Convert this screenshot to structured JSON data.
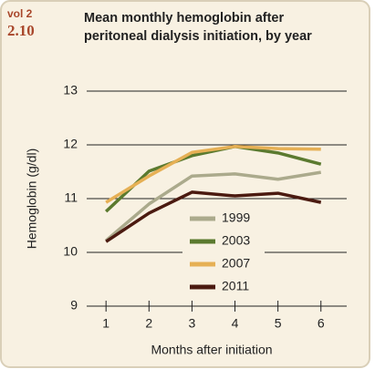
{
  "chart_data": {
    "type": "line",
    "volume": "vol 2",
    "figure": "2.10",
    "title": [
      "Mean monthly hemoglobin after",
      "peritoneal dialysis initiation, by year"
    ],
    "xlabel": "Months after initiation",
    "ylabel": "Hemoglobin (g/dl)",
    "x": [
      1,
      2,
      3,
      4,
      5,
      6
    ],
    "xlim": [
      0.55,
      6.6
    ],
    "xticks": [
      1,
      2,
      3,
      4,
      5,
      6
    ],
    "ylim": [
      9,
      13
    ],
    "yticks": [
      9,
      10,
      11,
      12,
      13
    ],
    "grid": true,
    "series": [
      {
        "name": "1999",
        "color": "#abaa8c",
        "values": [
          10.22,
          10.9,
          11.42,
          11.46,
          11.36,
          11.49
        ]
      },
      {
        "name": "2003",
        "color": "#5b7a2f",
        "values": [
          10.76,
          11.51,
          11.8,
          11.97,
          11.85,
          11.64
        ]
      },
      {
        "name": "2007",
        "color": "#e6b055",
        "values": [
          10.93,
          11.42,
          11.86,
          11.97,
          11.93,
          11.92
        ]
      },
      {
        "name": "2011",
        "color": "#4b1a10",
        "values": [
          10.2,
          10.73,
          11.12,
          11.05,
          11.1,
          10.93
        ]
      }
    ]
  }
}
